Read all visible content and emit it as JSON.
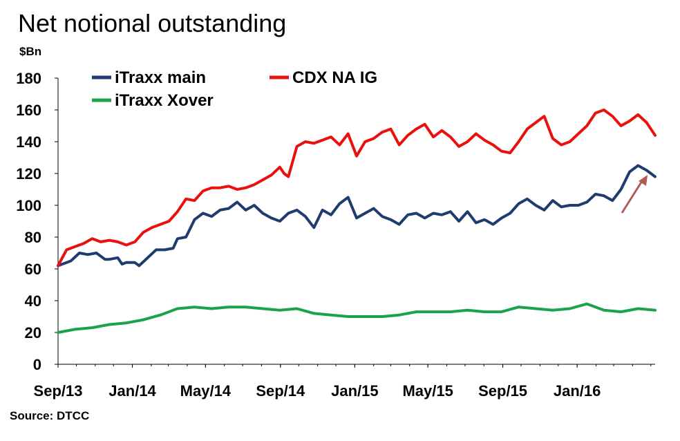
{
  "chart_data": {
    "type": "line",
    "title": "Net notional outstanding",
    "ylabel": "$Bn",
    "source": "Source: DTCC",
    "ylim": [
      0,
      180
    ],
    "yticks": [
      "0",
      "20",
      "40",
      "60",
      "80",
      "100",
      "120",
      "140",
      "160",
      "180"
    ],
    "x_range": [
      "2013-09-01",
      "2016-05-08"
    ],
    "xticks": [
      {
        "label": "Sep/13",
        "date": "2013-09-01"
      },
      {
        "label": "Jan/14",
        "date": "2014-01-01"
      },
      {
        "label": "May/14",
        "date": "2014-05-01"
      },
      {
        "label": "Sep/14",
        "date": "2014-09-01"
      },
      {
        "label": "Jan/15",
        "date": "2015-01-01"
      },
      {
        "label": "May/15",
        "date": "2015-05-01"
      },
      {
        "label": "Sep/15",
        "date": "2015-09-01"
      },
      {
        "label": "Jan/16",
        "date": "2016-01-01"
      }
    ],
    "grid": false,
    "legend": "top-left",
    "series": [
      {
        "name": "iTraxx main",
        "color": "#1f3c70",
        "x": [
          "2013-09-01",
          "2013-09-22",
          "2013-10-06",
          "2013-10-20",
          "2013-11-03",
          "2013-11-17",
          "2013-11-24",
          "2013-12-08",
          "2013-12-15",
          "2013-12-22",
          "2014-01-05",
          "2014-01-12",
          "2014-01-26",
          "2014-02-09",
          "2014-02-23",
          "2014-03-09",
          "2014-03-16",
          "2014-03-30",
          "2014-04-13",
          "2014-04-27",
          "2014-05-11",
          "2014-05-25",
          "2014-06-08",
          "2014-06-22",
          "2014-07-06",
          "2014-07-20",
          "2014-08-03",
          "2014-08-17",
          "2014-08-31",
          "2014-09-14",
          "2014-09-28",
          "2014-10-12",
          "2014-10-26",
          "2014-11-09",
          "2014-11-23",
          "2014-12-07",
          "2014-12-21",
          "2015-01-04",
          "2015-01-18",
          "2015-02-01",
          "2015-02-15",
          "2015-03-01",
          "2015-03-15",
          "2015-03-29",
          "2015-04-12",
          "2015-04-26",
          "2015-05-10",
          "2015-05-24",
          "2015-06-07",
          "2015-06-21",
          "2015-07-05",
          "2015-07-19",
          "2015-08-02",
          "2015-08-16",
          "2015-08-30",
          "2015-09-13",
          "2015-09-27",
          "2015-10-11",
          "2015-10-25",
          "2015-11-08",
          "2015-11-22",
          "2015-12-06",
          "2015-12-20",
          "2016-01-03",
          "2016-01-17",
          "2016-01-31",
          "2016-02-14",
          "2016-02-28",
          "2016-03-13",
          "2016-03-27",
          "2016-04-10",
          "2016-04-24",
          "2016-05-08"
        ],
        "values": [
          62,
          65,
          70,
          69,
          70,
          66,
          66,
          67,
          63,
          64,
          64,
          62,
          67,
          72,
          72,
          73,
          79,
          80,
          91,
          95,
          93,
          97,
          98,
          102,
          97,
          100,
          95,
          92,
          90,
          95,
          97,
          93,
          86,
          97,
          94,
          101,
          105,
          92,
          95,
          98,
          93,
          91,
          88,
          94,
          95,
          92,
          95,
          94,
          96,
          90,
          96,
          89,
          91,
          88,
          92,
          95,
          101,
          104,
          100,
          97,
          103,
          99,
          100,
          100,
          102,
          107,
          106,
          103,
          110,
          121,
          125,
          122,
          118
        ]
      },
      {
        "name": "CDX NA IG",
        "color": "#e8110e",
        "x": [
          "2013-09-01",
          "2013-09-15",
          "2013-09-29",
          "2013-10-13",
          "2013-10-27",
          "2013-11-10",
          "2013-11-24",
          "2013-12-08",
          "2013-12-22",
          "2014-01-05",
          "2014-01-19",
          "2014-02-02",
          "2014-02-16",
          "2014-03-02",
          "2014-03-16",
          "2014-03-30",
          "2014-04-13",
          "2014-04-27",
          "2014-05-11",
          "2014-05-25",
          "2014-06-08",
          "2014-06-22",
          "2014-07-06",
          "2014-07-20",
          "2014-08-03",
          "2014-08-17",
          "2014-08-31",
          "2014-09-07",
          "2014-09-14",
          "2014-09-28",
          "2014-10-12",
          "2014-10-26",
          "2014-11-09",
          "2014-11-23",
          "2014-12-07",
          "2014-12-21",
          "2015-01-04",
          "2015-01-18",
          "2015-02-01",
          "2015-02-15",
          "2015-03-01",
          "2015-03-15",
          "2015-03-29",
          "2015-04-12",
          "2015-04-26",
          "2015-05-10",
          "2015-05-24",
          "2015-06-07",
          "2015-06-21",
          "2015-07-05",
          "2015-07-19",
          "2015-08-02",
          "2015-08-16",
          "2015-08-30",
          "2015-09-13",
          "2015-09-27",
          "2015-10-11",
          "2015-10-25",
          "2015-11-08",
          "2015-11-22",
          "2015-12-06",
          "2015-12-20",
          "2016-01-03",
          "2016-01-17",
          "2016-01-31",
          "2016-02-14",
          "2016-02-28",
          "2016-03-13",
          "2016-03-27",
          "2016-04-10",
          "2016-04-24",
          "2016-05-08"
        ],
        "values": [
          62,
          72,
          74,
          76,
          79,
          77,
          78,
          77,
          75,
          77,
          83,
          86,
          88,
          90,
          96,
          104,
          103,
          109,
          111,
          111,
          112,
          110,
          111,
          113,
          116,
          119,
          124,
          120,
          118,
          137,
          140,
          139,
          141,
          143,
          138,
          145,
          131,
          140,
          142,
          146,
          148,
          138,
          144,
          148,
          151,
          143,
          147,
          143,
          137,
          140,
          145,
          141,
          138,
          134,
          133,
          140,
          148,
          152,
          156,
          142,
          138,
          140,
          145,
          150,
          158,
          160,
          156,
          150,
          153,
          157,
          152,
          144
        ]
      },
      {
        "name": "iTraxx Xover",
        "color": "#19a34a",
        "x": [
          "2013-09-01",
          "2013-09-29",
          "2013-10-27",
          "2013-11-24",
          "2013-12-22",
          "2014-01-19",
          "2014-02-16",
          "2014-03-16",
          "2014-04-13",
          "2014-05-11",
          "2014-06-08",
          "2014-07-06",
          "2014-08-03",
          "2014-08-31",
          "2014-09-28",
          "2014-10-26",
          "2014-11-23",
          "2014-12-21",
          "2015-01-18",
          "2015-02-15",
          "2015-03-15",
          "2015-04-12",
          "2015-05-10",
          "2015-06-07",
          "2015-07-05",
          "2015-08-02",
          "2015-08-30",
          "2015-09-27",
          "2015-10-25",
          "2015-11-22",
          "2015-12-20",
          "2016-01-17",
          "2016-02-14",
          "2016-03-13",
          "2016-04-10",
          "2016-05-08"
        ],
        "values": [
          20,
          22,
          23,
          25,
          26,
          28,
          31,
          35,
          36,
          35,
          36,
          36,
          35,
          34,
          35,
          32,
          31,
          30,
          30,
          30,
          31,
          33,
          33,
          33,
          34,
          33,
          33,
          36,
          35,
          34,
          35,
          38,
          34,
          33,
          35,
          34
        ]
      }
    ]
  }
}
